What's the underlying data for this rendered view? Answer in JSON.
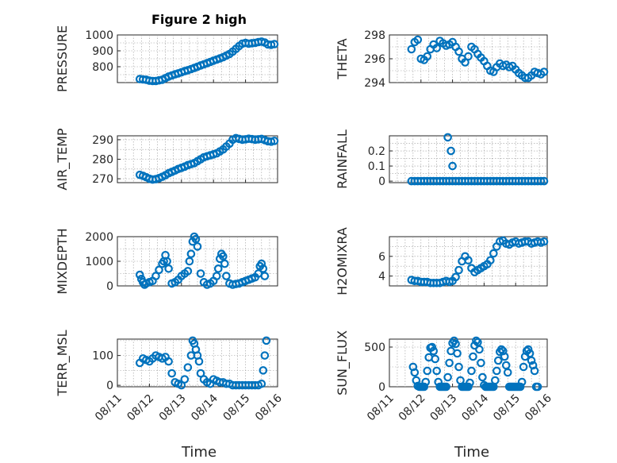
{
  "figure": {
    "title": "Figure 2 high",
    "xlabel": "Time",
    "x_tick_labels": [
      "08/11",
      "08/12",
      "08/13",
      "08/14",
      "08/15",
      "08/16"
    ],
    "marker_color": "#0072BD"
  },
  "chart_data": [
    {
      "type": "scatter",
      "ylabel": "PRESSURE",
      "ylim": [
        700,
        1000
      ],
      "yticks": [
        800,
        900,
        1000
      ],
      "ytick_labels": [
        "800",
        "900",
        "1000"
      ],
      "grid": true,
      "x": [
        11.7,
        11.8,
        11.9,
        12.0,
        12.1,
        12.2,
        12.3,
        12.4,
        12.5,
        12.6,
        12.7,
        12.8,
        12.9,
        13.0,
        13.1,
        13.2,
        13.3,
        13.4,
        13.5,
        13.6,
        13.7,
        13.8,
        13.9,
        14.0,
        14.1,
        14.2,
        14.3,
        14.4,
        14.5,
        14.6,
        14.7,
        14.8,
        14.9,
        15.0,
        15.1,
        15.2,
        15.3,
        15.4,
        15.5,
        15.6,
        15.7,
        15.8,
        15.9
      ],
      "y": [
        722,
        720,
        718,
        712,
        710,
        710,
        714,
        718,
        728,
        738,
        745,
        752,
        758,
        765,
        772,
        778,
        785,
        792,
        800,
        808,
        815,
        822,
        830,
        838,
        845,
        852,
        860,
        870,
        880,
        895,
        912,
        930,
        945,
        950,
        945,
        948,
        950,
        955,
        958,
        952,
        940,
        938,
        942
      ]
    },
    {
      "type": "scatter",
      "ylabel": "THETA",
      "ylim": [
        294,
        298
      ],
      "yticks": [
        294,
        296,
        298
      ],
      "ytick_labels": [
        "294",
        "296",
        "298"
      ],
      "grid": true,
      "x": [
        11.7,
        11.8,
        11.9,
        12.0,
        12.1,
        12.2,
        12.3,
        12.4,
        12.5,
        12.6,
        12.7,
        12.8,
        12.9,
        13.0,
        13.1,
        13.2,
        13.3,
        13.4,
        13.5,
        13.6,
        13.7,
        13.8,
        13.9,
        14.0,
        14.1,
        14.2,
        14.3,
        14.4,
        14.5,
        14.6,
        14.7,
        14.8,
        14.9,
        15.0,
        15.1,
        15.2,
        15.3,
        15.4,
        15.5,
        15.6,
        15.7,
        15.8,
        15.9
      ],
      "y": [
        296.8,
        297.4,
        297.6,
        296.0,
        295.9,
        296.2,
        296.8,
        297.2,
        296.9,
        297.5,
        297.3,
        297.1,
        297.2,
        297.4,
        297.0,
        296.6,
        296.0,
        295.7,
        296.2,
        297.0,
        296.8,
        296.4,
        296.1,
        295.8,
        295.4,
        295.0,
        294.9,
        295.3,
        295.6,
        295.4,
        295.5,
        295.3,
        295.4,
        295.1,
        294.8,
        294.6,
        294.4,
        294.4,
        294.6,
        294.9,
        294.8,
        294.7,
        294.9
      ]
    },
    {
      "type": "scatter",
      "ylabel": "AIR_TEMP",
      "ylim": [
        268,
        292
      ],
      "yticks": [
        270,
        280,
        290
      ],
      "ytick_labels": [
        "270",
        "280",
        "290"
      ],
      "grid": true,
      "x": [
        11.7,
        11.8,
        11.9,
        12.0,
        12.1,
        12.2,
        12.3,
        12.4,
        12.5,
        12.6,
        12.7,
        12.8,
        12.9,
        13.0,
        13.1,
        13.2,
        13.3,
        13.4,
        13.5,
        13.6,
        13.7,
        13.8,
        13.9,
        14.0,
        14.1,
        14.2,
        14.3,
        14.4,
        14.5,
        14.6,
        14.7,
        14.8,
        14.9,
        15.0,
        15.1,
        15.2,
        15.3,
        15.4,
        15.5,
        15.6,
        15.7,
        15.8,
        15.9
      ],
      "y": [
        272,
        271.5,
        270.8,
        270,
        269.6,
        269.8,
        270.3,
        271,
        271.8,
        272.8,
        273.5,
        274.2,
        275,
        275.6,
        276.2,
        277,
        277.5,
        278,
        279,
        280,
        281,
        281.5,
        282,
        282.5,
        283,
        284,
        285,
        286.5,
        288,
        290,
        290.8,
        290.4,
        290,
        290.2,
        290.5,
        290.3,
        290,
        290.2,
        290.4,
        289.8,
        289.2,
        289,
        289.4
      ]
    },
    {
      "type": "scatter",
      "ylabel": "RAINFALL",
      "ylim": [
        -0.01,
        0.3
      ],
      "yticks": [
        0,
        0.1,
        0.2
      ],
      "ytick_labels": [
        "0",
        "0.1",
        "0.2"
      ],
      "grid": true,
      "x": [
        11.7,
        11.8,
        11.9,
        12.0,
        12.1,
        12.2,
        12.3,
        12.4,
        12.5,
        12.6,
        12.7,
        12.8,
        12.9,
        13.0,
        13.1,
        13.2,
        13.3,
        13.4,
        13.5,
        13.6,
        13.7,
        13.8,
        13.9,
        14.0,
        14.1,
        14.2,
        14.3,
        14.4,
        14.5,
        14.6,
        14.7,
        14.8,
        14.9,
        15.0,
        15.1,
        15.2,
        15.3,
        15.4,
        15.5,
        15.6,
        15.7,
        15.8,
        15.9,
        12.85,
        12.95,
        13.0
      ],
      "y": [
        0,
        0,
        0,
        0,
        0,
        0,
        0,
        0,
        0,
        0,
        0,
        0,
        0,
        0,
        0,
        0,
        0,
        0,
        0,
        0,
        0,
        0,
        0,
        0,
        0,
        0,
        0,
        0,
        0,
        0,
        0,
        0,
        0,
        0,
        0,
        0,
        0,
        0,
        0,
        0,
        0,
        0,
        0,
        0.29,
        0.2,
        0.1
      ]
    },
    {
      "type": "scatter",
      "ylabel": "MIXDEPTH",
      "ylim": [
        0,
        2000
      ],
      "yticks": [
        0,
        1000,
        2000
      ],
      "ytick_labels": [
        "0",
        "1000",
        "2000"
      ],
      "grid": true,
      "x": [
        11.7,
        11.75,
        11.8,
        11.85,
        11.9,
        12.0,
        12.1,
        12.2,
        12.3,
        12.4,
        12.45,
        12.5,
        12.55,
        12.6,
        12.7,
        12.8,
        12.9,
        13.0,
        13.1,
        13.2,
        13.25,
        13.3,
        13.35,
        13.4,
        13.45,
        13.5,
        13.6,
        13.7,
        13.8,
        13.9,
        14.0,
        14.1,
        14.15,
        14.2,
        14.25,
        14.3,
        14.35,
        14.4,
        14.5,
        14.6,
        14.7,
        14.8,
        14.9,
        15.0,
        15.1,
        15.2,
        15.3,
        15.4,
        15.45,
        15.5,
        15.55,
        15.6
      ],
      "y": [
        450,
        280,
        150,
        50,
        100,
        150,
        200,
        400,
        650,
        900,
        1000,
        1250,
        1000,
        700,
        100,
        150,
        250,
        400,
        500,
        600,
        1000,
        1300,
        1800,
        2000,
        1900,
        1600,
        500,
        150,
        50,
        100,
        200,
        400,
        700,
        1100,
        1300,
        1200,
        900,
        400,
        100,
        50,
        80,
        100,
        150,
        200,
        250,
        300,
        350,
        500,
        800,
        900,
        700,
        400
      ]
    },
    {
      "type": "scatter",
      "ylabel": "H2OMIXRA",
      "ylim": [
        3,
        8
      ],
      "yticks": [
        4,
        6
      ],
      "ytick_labels": [
        "4",
        "6"
      ],
      "grid": true,
      "x": [
        11.7,
        11.8,
        11.9,
        12.0,
        12.1,
        12.2,
        12.3,
        12.4,
        12.5,
        12.6,
        12.7,
        12.8,
        12.9,
        13.0,
        13.1,
        13.2,
        13.3,
        13.4,
        13.5,
        13.6,
        13.7,
        13.8,
        13.9,
        14.0,
        14.1,
        14.2,
        14.3,
        14.4,
        14.5,
        14.6,
        14.7,
        14.8,
        14.9,
        15.0,
        15.1,
        15.2,
        15.3,
        15.4,
        15.5,
        15.6,
        15.7,
        15.8,
        15.9
      ],
      "y": [
        3.6,
        3.5,
        3.5,
        3.4,
        3.4,
        3.4,
        3.3,
        3.3,
        3.3,
        3.3,
        3.4,
        3.5,
        3.4,
        3.5,
        3.9,
        4.6,
        5.5,
        6.0,
        5.6,
        4.8,
        4.4,
        4.6,
        4.8,
        5.0,
        5.2,
        5.6,
        6.3,
        7.0,
        7.5,
        7.6,
        7.3,
        7.2,
        7.4,
        7.5,
        7.3,
        7.4,
        7.5,
        7.5,
        7.3,
        7.4,
        7.5,
        7.4,
        7.5
      ]
    },
    {
      "type": "scatter",
      "ylabel": "TERR_MSL",
      "ylim": [
        -5,
        155
      ],
      "yticks": [
        0,
        100
      ],
      "ytick_labels": [
        "0",
        "100"
      ],
      "grid": true,
      "x": [
        11.7,
        11.8,
        11.9,
        12.0,
        12.1,
        12.2,
        12.3,
        12.4,
        12.5,
        12.6,
        12.7,
        12.8,
        12.9,
        13.0,
        13.1,
        13.2,
        13.3,
        13.35,
        13.4,
        13.45,
        13.5,
        13.55,
        13.6,
        13.7,
        13.8,
        13.9,
        14.0,
        14.1,
        14.2,
        14.3,
        14.4,
        14.5,
        14.6,
        14.7,
        14.8,
        14.9,
        15.0,
        15.1,
        15.2,
        15.3,
        15.4,
        15.5,
        15.55,
        15.6,
        15.65
      ],
      "y": [
        75,
        90,
        85,
        80,
        90,
        100,
        95,
        90,
        95,
        80,
        40,
        10,
        5,
        0,
        20,
        60,
        100,
        150,
        140,
        120,
        100,
        80,
        40,
        20,
        10,
        5,
        20,
        15,
        10,
        10,
        5,
        5,
        0,
        0,
        0,
        0,
        0,
        0,
        0,
        0,
        0,
        5,
        50,
        100,
        150
      ]
    },
    {
      "type": "scatter",
      "ylabel": "SUN_FLUX",
      "ylim": [
        0,
        600
      ],
      "yticks": [
        0,
        500
      ],
      "ytick_labels": [
        "0",
        "500"
      ],
      "grid": true,
      "x": [
        11.75,
        11.8,
        11.85,
        11.9,
        11.95,
        12.0,
        12.05,
        12.1,
        12.15,
        12.2,
        12.25,
        12.3,
        12.35,
        12.4,
        12.45,
        12.5,
        12.55,
        12.6,
        12.65,
        12.7,
        12.75,
        12.8,
        12.85,
        12.9,
        12.95,
        13.0,
        13.05,
        13.1,
        13.15,
        13.2,
        13.25,
        13.3,
        13.35,
        13.4,
        13.45,
        13.5,
        13.55,
        13.6,
        13.65,
        13.7,
        13.75,
        13.8,
        13.85,
        13.9,
        13.95,
        14.0,
        14.05,
        14.1,
        14.15,
        14.2,
        14.25,
        14.3,
        14.35,
        14.4,
        14.45,
        14.5,
        14.55,
        14.6,
        14.65,
        14.7,
        14.75,
        14.8,
        14.85,
        14.9,
        14.95,
        15.0,
        15.05,
        15.1,
        15.15,
        15.2,
        15.25,
        15.3,
        15.35,
        15.4,
        15.45,
        15.5,
        15.55,
        15.6,
        15.65,
        15.7
      ],
      "y": [
        250,
        180,
        80,
        10,
        0,
        0,
        0,
        0,
        60,
        200,
        370,
        490,
        500,
        450,
        350,
        200,
        60,
        0,
        0,
        0,
        0,
        0,
        120,
        300,
        450,
        550,
        580,
        540,
        420,
        250,
        80,
        0,
        0,
        0,
        0,
        0,
        50,
        200,
        380,
        520,
        580,
        560,
        470,
        300,
        120,
        20,
        0,
        0,
        0,
        0,
        0,
        0,
        80,
        200,
        330,
        440,
        470,
        450,
        380,
        270,
        180,
        0,
        0,
        0,
        0,
        0,
        0,
        0,
        0,
        60,
        250,
        380,
        450,
        470,
        420,
        330,
        270,
        200,
        0,
        0
      ]
    }
  ]
}
